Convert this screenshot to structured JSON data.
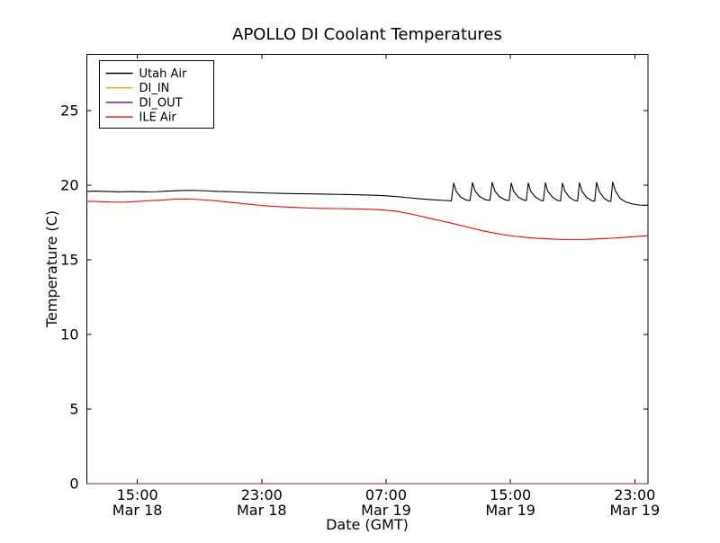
{
  "chart_data": {
    "type": "line",
    "title": "APOLLO DI Coolant Temperatures",
    "xlabel": "Date (GMT)",
    "ylabel": "Temperature (C)",
    "x_unit": "hours since Mar 18 00:00 GMT",
    "xlim": [
      11.75,
      47.85
    ],
    "ylim": [
      0,
      28.76
    ],
    "grid": false,
    "legend_position": "upper-left",
    "yticks": [
      0,
      5,
      10,
      15,
      20,
      25
    ],
    "xticks": [
      {
        "value": 15,
        "time": "15:00",
        "date": "Mar 18"
      },
      {
        "value": 23,
        "time": "23:00",
        "date": "Mar 18"
      },
      {
        "value": 31,
        "time": "07:00",
        "date": "Mar 19"
      },
      {
        "value": 39,
        "time": "15:00",
        "date": "Mar 19"
      },
      {
        "value": 47,
        "time": "23:00",
        "date": "Mar 19"
      }
    ],
    "series": [
      {
        "name": "Utah Air",
        "color": "#000000",
        "opacity": 1,
        "points": [
          [
            11.75,
            19.58
          ],
          [
            12.3,
            19.6
          ],
          [
            13.0,
            19.58
          ],
          [
            13.8,
            19.55
          ],
          [
            14.6,
            19.57
          ],
          [
            15.4,
            19.55
          ],
          [
            16.2,
            19.56
          ],
          [
            17.0,
            19.6
          ],
          [
            17.8,
            19.64
          ],
          [
            18.6,
            19.65
          ],
          [
            19.4,
            19.62
          ],
          [
            20.2,
            19.58
          ],
          [
            21.0,
            19.56
          ],
          [
            21.8,
            19.53
          ],
          [
            22.6,
            19.5
          ],
          [
            23.4,
            19.47
          ],
          [
            24.2,
            19.45
          ],
          [
            25.0,
            19.43
          ],
          [
            26.0,
            19.42
          ],
          [
            27.0,
            19.4
          ],
          [
            28.0,
            19.38
          ],
          [
            29.0,
            19.36
          ],
          [
            30.0,
            19.33
          ],
          [
            30.8,
            19.3
          ],
          [
            31.6,
            19.24
          ],
          [
            32.4,
            19.16
          ],
          [
            33.2,
            19.08
          ],
          [
            34.0,
            19.02
          ],
          [
            34.7,
            18.98
          ],
          [
            35.2,
            18.95
          ],
          [
            35.35,
            20.15
          ],
          [
            35.5,
            19.6
          ],
          [
            35.8,
            19.2
          ],
          [
            36.15,
            19.0
          ],
          [
            36.4,
            18.97
          ],
          [
            36.56,
            20.18
          ],
          [
            36.72,
            19.62
          ],
          [
            37.0,
            19.25
          ],
          [
            37.4,
            19.02
          ],
          [
            37.68,
            18.98
          ],
          [
            37.83,
            20.2
          ],
          [
            38.0,
            19.6
          ],
          [
            38.3,
            19.22
          ],
          [
            38.7,
            19.0
          ],
          [
            38.92,
            18.97
          ],
          [
            39.05,
            20.16
          ],
          [
            39.2,
            19.6
          ],
          [
            39.5,
            19.2
          ],
          [
            39.85,
            19.0
          ],
          [
            40.02,
            18.97
          ],
          [
            40.15,
            20.15
          ],
          [
            40.3,
            19.6
          ],
          [
            40.6,
            19.2
          ],
          [
            40.95,
            18.98
          ],
          [
            41.12,
            18.96
          ],
          [
            41.25,
            20.17
          ],
          [
            41.4,
            19.6
          ],
          [
            41.7,
            19.2
          ],
          [
            42.05,
            18.97
          ],
          [
            42.22,
            18.95
          ],
          [
            42.35,
            20.15
          ],
          [
            42.5,
            19.6
          ],
          [
            42.8,
            19.18
          ],
          [
            43.15,
            18.96
          ],
          [
            43.32,
            18.94
          ],
          [
            43.44,
            20.17
          ],
          [
            43.6,
            19.6
          ],
          [
            43.9,
            19.18
          ],
          [
            44.25,
            18.95
          ],
          [
            44.42,
            18.93
          ],
          [
            44.54,
            20.2
          ],
          [
            44.7,
            19.6
          ],
          [
            45.0,
            19.15
          ],
          [
            45.3,
            18.93
          ],
          [
            45.46,
            18.92
          ],
          [
            45.58,
            20.22
          ],
          [
            45.75,
            19.62
          ],
          [
            46.05,
            19.12
          ],
          [
            46.4,
            18.88
          ],
          [
            46.8,
            18.75
          ],
          [
            47.2,
            18.68
          ],
          [
            47.5,
            18.65
          ],
          [
            47.85,
            18.66
          ]
        ]
      },
      {
        "name": "DI_IN",
        "color": "#ffa500",
        "opacity": 0.75,
        "points": [
          [
            11.75,
            0
          ],
          [
            47.85,
            0
          ]
        ]
      },
      {
        "name": "DI_OUT",
        "color": "#800080",
        "opacity": 0.75,
        "points": [
          [
            11.75,
            0
          ],
          [
            47.85,
            0
          ]
        ]
      },
      {
        "name": "ILE Air",
        "color": "#ff0000",
        "opacity": 1,
        "points": [
          [
            11.75,
            18.92
          ],
          [
            12.5,
            18.9
          ],
          [
            13.3,
            18.87
          ],
          [
            14.1,
            18.86
          ],
          [
            14.9,
            18.9
          ],
          [
            15.7,
            18.95
          ],
          [
            16.5,
            19.0
          ],
          [
            17.3,
            19.05
          ],
          [
            18.1,
            19.07
          ],
          [
            18.9,
            19.04
          ],
          [
            19.7,
            18.98
          ],
          [
            20.5,
            18.9
          ],
          [
            21.3,
            18.82
          ],
          [
            22.1,
            18.73
          ],
          [
            22.9,
            18.65
          ],
          [
            23.7,
            18.58
          ],
          [
            24.5,
            18.54
          ],
          [
            25.3,
            18.5
          ],
          [
            26.1,
            18.46
          ],
          [
            26.9,
            18.44
          ],
          [
            27.7,
            18.43
          ],
          [
            28.5,
            18.42
          ],
          [
            29.3,
            18.4
          ],
          [
            30.1,
            18.38
          ],
          [
            30.9,
            18.33
          ],
          [
            31.6,
            18.26
          ],
          [
            32.3,
            18.13
          ],
          [
            33.0,
            17.97
          ],
          [
            33.7,
            17.8
          ],
          [
            34.4,
            17.64
          ],
          [
            35.1,
            17.48
          ],
          [
            35.8,
            17.3
          ],
          [
            36.5,
            17.12
          ],
          [
            37.2,
            16.95
          ],
          [
            37.9,
            16.8
          ],
          [
            38.6,
            16.67
          ],
          [
            39.3,
            16.57
          ],
          [
            40.0,
            16.5
          ],
          [
            40.7,
            16.44
          ],
          [
            41.4,
            16.4
          ],
          [
            42.1,
            16.37
          ],
          [
            42.8,
            16.36
          ],
          [
            43.5,
            16.36
          ],
          [
            44.2,
            16.38
          ],
          [
            44.9,
            16.41
          ],
          [
            45.6,
            16.45
          ],
          [
            46.3,
            16.5
          ],
          [
            47.0,
            16.55
          ],
          [
            47.85,
            16.62
          ]
        ]
      }
    ]
  }
}
